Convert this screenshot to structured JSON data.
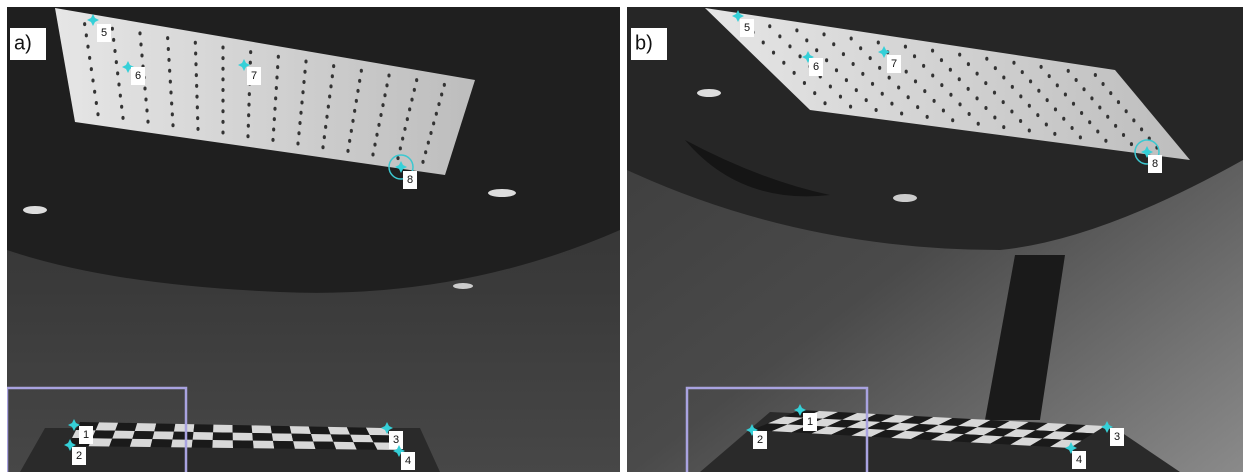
{
  "panels": [
    {
      "label": "a)",
      "points": [
        {
          "label": "1"
        },
        {
          "label": "2"
        },
        {
          "label": "3"
        },
        {
          "label": "4"
        },
        {
          "label": "5"
        },
        {
          "label": "6"
        },
        {
          "label": "7"
        },
        {
          "label": "8"
        }
      ]
    },
    {
      "label": "b)",
      "points": [
        {
          "label": "1"
        },
        {
          "label": "2"
        },
        {
          "label": "3"
        },
        {
          "label": "4"
        },
        {
          "label": "5"
        },
        {
          "label": "6"
        },
        {
          "label": "7"
        },
        {
          "label": "8"
        }
      ]
    }
  ]
}
